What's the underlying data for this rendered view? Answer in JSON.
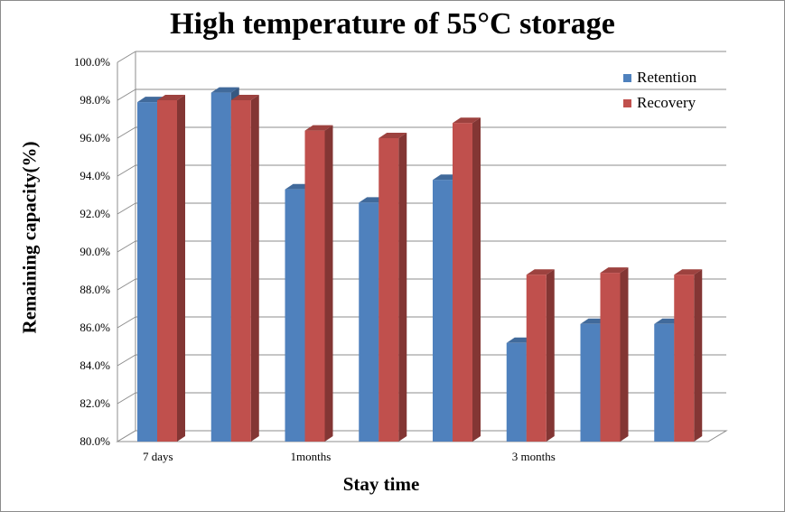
{
  "chart_data": {
    "type": "bar",
    "title": "High temperature of 55°C storage",
    "xlabel": "Stay time",
    "ylabel": "Remaining capacity(%)",
    "ylim": [
      80,
      100
    ],
    "yticks": [
      "80.0%",
      "82.0%",
      "84.0%",
      "86.0%",
      "88.0%",
      "90.0%",
      "92.0%",
      "94.0%",
      "96.0%",
      "98.0%",
      "100.0%"
    ],
    "category_labels": [
      "7 days",
      "",
      "1months",
      "",
      "",
      "3 months",
      "",
      ""
    ],
    "series": [
      {
        "name": "Retention",
        "color": "#4f81bd",
        "values": [
          97.9,
          98.4,
          93.3,
          92.6,
          93.8,
          85.2,
          86.2,
          86.2
        ]
      },
      {
        "name": "Recovery",
        "color": "#c0504d",
        "values": [
          98.0,
          98.0,
          96.4,
          96.0,
          96.8,
          88.8,
          88.9,
          88.8
        ]
      }
    ],
    "grid": true,
    "legend_position": "top-right"
  }
}
